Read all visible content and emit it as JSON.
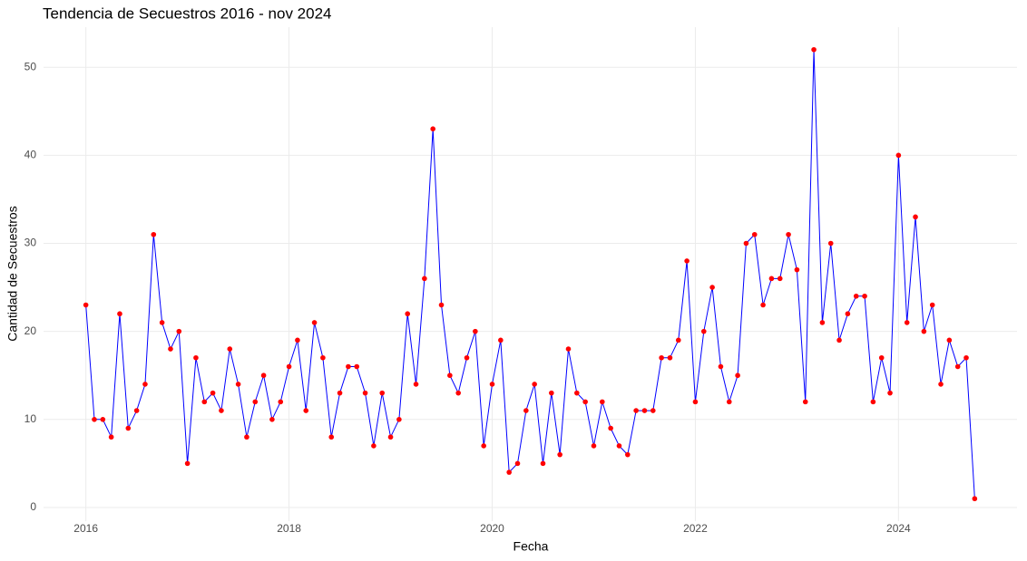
{
  "chart_data": {
    "type": "line",
    "title": "Tendencia de Secuestros 2016 - nov 2024",
    "x_label": "Fecha",
    "y_label": "Cantidad de Secuestros",
    "x": [
      "2016-01",
      "2016-02",
      "2016-03",
      "2016-04",
      "2016-05",
      "2016-06",
      "2016-07",
      "2016-08",
      "2016-09",
      "2016-10",
      "2016-11",
      "2016-12",
      "2017-01",
      "2017-02",
      "2017-03",
      "2017-04",
      "2017-05",
      "2017-06",
      "2017-07",
      "2017-08",
      "2017-09",
      "2017-10",
      "2017-11",
      "2017-12",
      "2018-01",
      "2018-02",
      "2018-03",
      "2018-04",
      "2018-05",
      "2018-06",
      "2018-07",
      "2018-08",
      "2018-09",
      "2018-10",
      "2018-11",
      "2018-12",
      "2019-01",
      "2019-02",
      "2019-03",
      "2019-04",
      "2019-05",
      "2019-06",
      "2019-07",
      "2019-08",
      "2019-09",
      "2019-10",
      "2019-11",
      "2019-12",
      "2020-01",
      "2020-02",
      "2020-03",
      "2020-04",
      "2020-05",
      "2020-06",
      "2020-07",
      "2020-08",
      "2020-09",
      "2020-10",
      "2020-11",
      "2020-12",
      "2021-01",
      "2021-02",
      "2021-03",
      "2021-04",
      "2021-05",
      "2021-06",
      "2021-07",
      "2021-08",
      "2021-09",
      "2021-10",
      "2021-11",
      "2021-12",
      "2022-01",
      "2022-02",
      "2022-03",
      "2022-04",
      "2022-05",
      "2022-06",
      "2022-07",
      "2022-08",
      "2022-09",
      "2022-10",
      "2022-11",
      "2022-12",
      "2023-01",
      "2023-02",
      "2023-03",
      "2023-04",
      "2023-05",
      "2023-06",
      "2023-07",
      "2023-08",
      "2023-09",
      "2023-10",
      "2023-11",
      "2023-12",
      "2024-01",
      "2024-02",
      "2024-03",
      "2024-04",
      "2024-05",
      "2024-06",
      "2024-07",
      "2024-08",
      "2024-09",
      "2024-10"
    ],
    "values": [
      23,
      10,
      10,
      8,
      22,
      9,
      11,
      14,
      31,
      21,
      18,
      20,
      5,
      17,
      12,
      13,
      11,
      18,
      14,
      8,
      12,
      15,
      10,
      12,
      16,
      19,
      11,
      21,
      17,
      8,
      13,
      16,
      16,
      13,
      7,
      13,
      8,
      10,
      22,
      14,
      26,
      43,
      23,
      15,
      13,
      17,
      20,
      7,
      14,
      19,
      4,
      5,
      11,
      14,
      5,
      13,
      6,
      18,
      13,
      12,
      7,
      12,
      9,
      7,
      6,
      11,
      11,
      11,
      17,
      17,
      19,
      28,
      12,
      20,
      25,
      16,
      12,
      15,
      30,
      31,
      23,
      26,
      26,
      31,
      27,
      12,
      52,
      21,
      30,
      19,
      22,
      24,
      24,
      12,
      17,
      13,
      40,
      21,
      33,
      20,
      23,
      14,
      19,
      16,
      17,
      1
    ],
    "line_color": "#0000ff",
    "point_color": "#ff0000",
    "xlim": [
      "2015-08",
      "2025-03"
    ],
    "xticks": [
      {
        "value": "2016-01",
        "label": "2016"
      },
      {
        "value": "2018-01",
        "label": "2018"
      },
      {
        "value": "2020-01",
        "label": "2020"
      },
      {
        "value": "2022-01",
        "label": "2022"
      },
      {
        "value": "2024-01",
        "label": "2024"
      }
    ],
    "ylim": [
      -1.55,
      54.55
    ],
    "yticks": [
      0,
      10,
      20,
      30,
      40,
      50
    ],
    "grid": true
  }
}
